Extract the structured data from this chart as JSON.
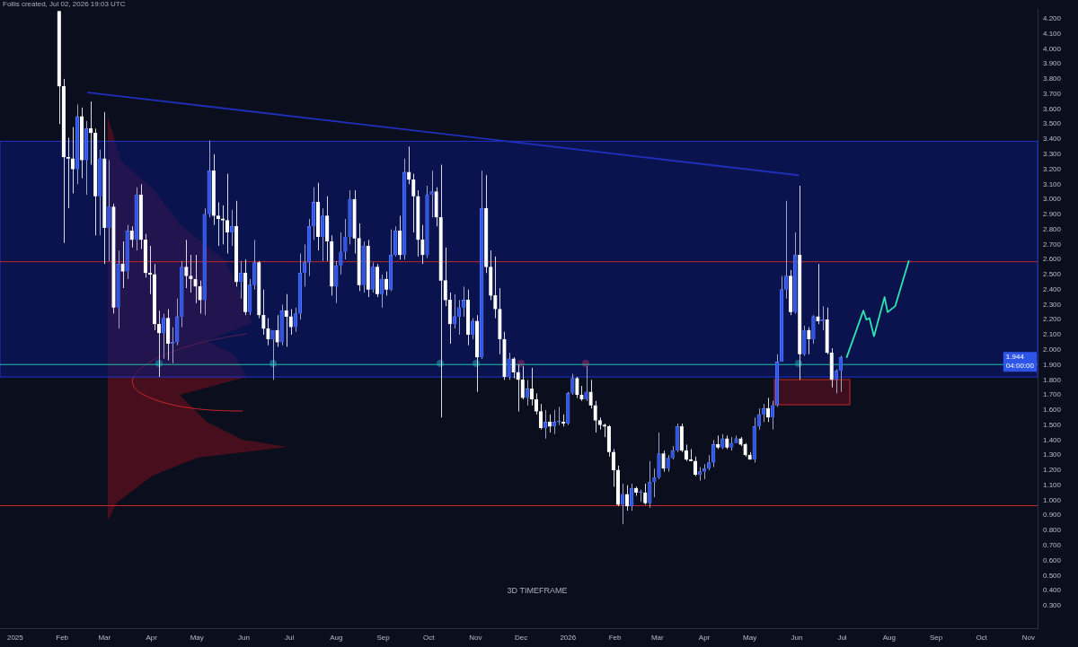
{
  "chart_data": {
    "type": "candlestick",
    "subtitle": "3D TIMEFRAME",
    "annotations": [
      "Follis created, Jul 02, 2026 19:03 UTC",
      "1.944",
      "04:00:00"
    ],
    "x": [
      "2025-01-30",
      "2025-02-02",
      "2025-02-05",
      "2025-02-08",
      "2025-02-11",
      "2025-02-14",
      "2025-02-17",
      "2025-02-20",
      "2025-02-23",
      "2025-02-26",
      "2025-03-01",
      "2025-03-04",
      "2025-03-07",
      "2025-03-10",
      "2025-03-13",
      "2025-03-16",
      "2025-03-19",
      "2025-03-22",
      "2025-03-25",
      "2025-03-28",
      "2025-03-31",
      "2025-04-03",
      "2025-04-06",
      "2025-04-09",
      "2025-04-12",
      "2025-04-15",
      "2025-04-18",
      "2025-04-21",
      "2025-04-24",
      "2025-04-27",
      "2025-04-30",
      "2025-05-03",
      "2025-05-06",
      "2025-05-09",
      "2025-05-12",
      "2025-05-15",
      "2025-05-18",
      "2025-05-21",
      "2025-05-24",
      "2025-05-27",
      "2025-05-30",
      "2025-06-02",
      "2025-06-05",
      "2025-06-08",
      "2025-06-11",
      "2025-06-14",
      "2025-06-17",
      "2025-06-20",
      "2025-06-23",
      "2025-06-26",
      "2025-06-29",
      "2025-07-02",
      "2025-07-05",
      "2025-07-08",
      "2025-07-11",
      "2025-07-14",
      "2025-07-17",
      "2025-07-20",
      "2025-07-23",
      "2025-07-26",
      "2025-07-29",
      "2025-08-01",
      "2025-08-04",
      "2025-08-07",
      "2025-08-10",
      "2025-08-13",
      "2025-08-16",
      "2025-08-19",
      "2025-08-22",
      "2025-08-25",
      "2025-08-28",
      "2025-08-31",
      "2025-09-03",
      "2025-09-06",
      "2025-09-09",
      "2025-09-12",
      "2025-09-15",
      "2025-09-18",
      "2025-09-21",
      "2025-09-24",
      "2025-09-27",
      "2025-09-30",
      "2025-10-03",
      "2025-10-06",
      "2025-10-09",
      "2025-10-12",
      "2025-10-15",
      "2025-10-18",
      "2025-10-21",
      "2025-10-24",
      "2025-10-27",
      "2025-10-30",
      "2025-11-02",
      "2025-11-05",
      "2025-11-08",
      "2025-11-11",
      "2025-11-14",
      "2025-11-17",
      "2025-11-20",
      "2025-11-23",
      "2025-11-26",
      "2025-11-29",
      "2025-12-02",
      "2025-12-05",
      "2025-12-08",
      "2025-12-11",
      "2025-12-14",
      "2025-12-17",
      "2025-12-20",
      "2025-12-23",
      "2025-12-26",
      "2025-12-29",
      "2026-01-01",
      "2026-01-04",
      "2026-01-07",
      "2026-01-10",
      "2026-01-13",
      "2026-01-16",
      "2026-01-19",
      "2026-01-22",
      "2026-01-25",
      "2026-01-28",
      "2026-01-31",
      "2026-02-03",
      "2026-02-06",
      "2026-02-09",
      "2026-02-12",
      "2026-02-15",
      "2026-02-18",
      "2026-02-21",
      "2026-02-24",
      "2026-02-27",
      "2026-03-02",
      "2026-03-05",
      "2026-03-08",
      "2026-03-11",
      "2026-03-14",
      "2026-03-17",
      "2026-03-20",
      "2026-03-23",
      "2026-03-26",
      "2026-03-29",
      "2026-04-01",
      "2026-04-04",
      "2026-04-07",
      "2026-04-10",
      "2026-04-13",
      "2026-04-16",
      "2026-04-19",
      "2026-04-22",
      "2026-04-25",
      "2026-04-28",
      "2026-05-01",
      "2026-05-04",
      "2026-05-07",
      "2026-05-10",
      "2026-05-13",
      "2026-05-16",
      "2026-05-19",
      "2026-05-22",
      "2026-05-25",
      "2026-05-28",
      "2026-05-31",
      "2026-06-03",
      "2026-06-06",
      "2026-06-09",
      "2026-06-12",
      "2026-06-15",
      "2026-06-18",
      "2026-06-21",
      "2026-06-24",
      "2026-06-27",
      "2026-06-30"
    ],
    "ohlc": [
      [
        4.25,
        4.25,
        3.5,
        3.75
      ],
      [
        3.75,
        3.8,
        2.71,
        3.28
      ],
      [
        3.28,
        3.41,
        2.94,
        3.27
      ],
      [
        3.27,
        3.48,
        3.04,
        3.2
      ],
      [
        3.2,
        3.63,
        3.1,
        3.55
      ],
      [
        3.55,
        3.61,
        3.14,
        3.26
      ],
      [
        3.26,
        3.52,
        3.03,
        3.47
      ],
      [
        3.47,
        3.65,
        3.23,
        3.44
      ],
      [
        3.44,
        3.47,
        2.76,
        3.02
      ],
      [
        3.02,
        3.33,
        2.76,
        3.27
      ],
      [
        3.27,
        3.58,
        2.57,
        2.81
      ],
      [
        2.81,
        3.26,
        2.59,
        2.95
      ],
      [
        2.95,
        2.97,
        2.24,
        2.28
      ],
      [
        2.28,
        2.66,
        2.14,
        2.57
      ],
      [
        2.57,
        2.72,
        2.41,
        2.52
      ],
      [
        2.52,
        2.83,
        2.47,
        2.79
      ],
      [
        2.79,
        2.82,
        2.68,
        2.73
      ],
      [
        2.73,
        3.08,
        2.66,
        3.03
      ],
      [
        3.03,
        3.1,
        2.67,
        2.73
      ],
      [
        2.73,
        2.77,
        2.48,
        2.51
      ],
      [
        2.51,
        2.69,
        2.37,
        2.5
      ],
      [
        2.5,
        2.57,
        2.13,
        2.17
      ],
      [
        2.17,
        2.26,
        1.82,
        2.11
      ],
      [
        2.11,
        2.24,
        1.94,
        2.21
      ],
      [
        2.21,
        2.27,
        1.93,
        2.04
      ],
      [
        2.04,
        2.15,
        1.91,
        2.05
      ],
      [
        2.05,
        2.34,
        2.03,
        2.22
      ],
      [
        2.22,
        2.59,
        2.15,
        2.55
      ],
      [
        2.55,
        2.73,
        2.41,
        2.49
      ],
      [
        2.49,
        2.63,
        2.38,
        2.47
      ],
      [
        2.47,
        2.63,
        2.31,
        2.42
      ],
      [
        2.42,
        2.46,
        2.24,
        2.33
      ],
      [
        2.33,
        2.94,
        2.23,
        2.9
      ],
      [
        2.9,
        3.39,
        2.88,
        3.19
      ],
      [
        3.19,
        3.3,
        2.83,
        2.89
      ],
      [
        2.89,
        2.98,
        2.69,
        2.87
      ],
      [
        2.87,
        2.96,
        2.7,
        2.86
      ],
      [
        2.86,
        3.17,
        2.64,
        2.78
      ],
      [
        2.78,
        2.93,
        2.69,
        2.82
      ],
      [
        2.82,
        2.99,
        2.42,
        2.45
      ],
      [
        2.45,
        2.59,
        2.34,
        2.51
      ],
      [
        2.51,
        2.6,
        2.23,
        2.25
      ],
      [
        2.25,
        2.47,
        2.23,
        2.43
      ],
      [
        2.43,
        2.73,
        2.4,
        2.58
      ],
      [
        2.58,
        2.59,
        2.21,
        2.23
      ],
      [
        2.23,
        2.4,
        2.1,
        2.14
      ],
      [
        2.14,
        2.21,
        2.03,
        2.07
      ],
      [
        2.07,
        2.13,
        1.8,
        2.13
      ],
      [
        2.13,
        2.23,
        2.02,
        2.05
      ],
      [
        2.05,
        2.3,
        2.03,
        2.26
      ],
      [
        2.26,
        2.37,
        2.02,
        2.22
      ],
      [
        2.22,
        2.27,
        2.1,
        2.15
      ],
      [
        2.15,
        2.28,
        2.12,
        2.24
      ],
      [
        2.24,
        2.64,
        2.2,
        2.51
      ],
      [
        2.51,
        2.7,
        2.42,
        2.58
      ],
      [
        2.58,
        2.87,
        2.49,
        2.82
      ],
      [
        2.82,
        3.08,
        2.73,
        2.98
      ],
      [
        2.98,
        3.11,
        2.66,
        2.75
      ],
      [
        2.75,
        2.94,
        2.59,
        2.89
      ],
      [
        2.89,
        3.02,
        2.59,
        2.72
      ],
      [
        2.72,
        2.76,
        2.36,
        2.42
      ],
      [
        2.42,
        2.59,
        2.31,
        2.56
      ],
      [
        2.56,
        2.78,
        2.5,
        2.65
      ],
      [
        2.65,
        2.87,
        2.6,
        2.75
      ],
      [
        2.75,
        3.06,
        2.7,
        3.0
      ],
      [
        3.0,
        3.06,
        2.64,
        2.74
      ],
      [
        2.74,
        2.84,
        2.39,
        2.43
      ],
      [
        2.43,
        2.72,
        2.38,
        2.69
      ],
      [
        2.69,
        2.73,
        2.35,
        2.4
      ],
      [
        2.4,
        2.58,
        2.38,
        2.55
      ],
      [
        2.55,
        2.57,
        2.35,
        2.37
      ],
      [
        2.37,
        2.5,
        2.28,
        2.47
      ],
      [
        2.47,
        2.52,
        2.36,
        2.4
      ],
      [
        2.4,
        2.8,
        2.39,
        2.63
      ],
      [
        2.63,
        2.82,
        2.62,
        2.79
      ],
      [
        2.79,
        2.89,
        2.6,
        2.63
      ],
      [
        2.63,
        3.27,
        2.6,
        3.18
      ],
      [
        3.18,
        3.35,
        3.1,
        3.13
      ],
      [
        3.13,
        3.17,
        2.78,
        3.02
      ],
      [
        3.02,
        3.06,
        2.62,
        2.73
      ],
      [
        2.73,
        2.83,
        2.57,
        2.63
      ],
      [
        2.63,
        3.09,
        2.61,
        3.03
      ],
      [
        3.03,
        3.19,
        2.88,
        3.05
      ],
      [
        3.05,
        3.08,
        2.82,
        2.88
      ],
      [
        2.88,
        3.23,
        1.55,
        2.46
      ],
      [
        2.46,
        2.68,
        2.29,
        2.33
      ],
      [
        2.33,
        2.38,
        2.04,
        2.17
      ],
      [
        2.17,
        2.37,
        2.14,
        2.22
      ],
      [
        2.22,
        2.33,
        2.1,
        2.28
      ],
      [
        2.28,
        2.42,
        2.22,
        2.33
      ],
      [
        2.33,
        2.4,
        2.03,
        2.1
      ],
      [
        2.1,
        2.21,
        2.07,
        2.19
      ],
      [
        2.19,
        2.23,
        1.72,
        1.95
      ],
      [
        1.95,
        3.19,
        1.94,
        2.94
      ],
      [
        2.94,
        3.16,
        2.51,
        2.55
      ],
      [
        2.55,
        2.66,
        2.33,
        2.36
      ],
      [
        2.36,
        2.62,
        2.21,
        2.27
      ],
      [
        2.27,
        2.41,
        1.97,
        2.07
      ],
      [
        2.07,
        2.12,
        1.8,
        1.82
      ],
      [
        1.82,
        1.98,
        1.8,
        1.94
      ],
      [
        1.94,
        1.95,
        1.81,
        1.85
      ],
      [
        1.85,
        1.9,
        1.59,
        1.8
      ],
      [
        1.8,
        1.89,
        1.67,
        1.68
      ],
      [
        1.68,
        1.8,
        1.63,
        1.74
      ],
      [
        1.74,
        1.88,
        1.63,
        1.67
      ],
      [
        1.67,
        1.71,
        1.57,
        1.59
      ],
      [
        1.59,
        1.64,
        1.47,
        1.48
      ],
      [
        1.48,
        1.6,
        1.41,
        1.52
      ],
      [
        1.52,
        1.57,
        1.45,
        1.49
      ],
      [
        1.49,
        1.6,
        1.44,
        1.52
      ],
      [
        1.52,
        1.62,
        1.5,
        1.52
      ],
      [
        1.52,
        1.57,
        1.49,
        1.51
      ],
      [
        1.51,
        1.72,
        1.5,
        1.71
      ],
      [
        1.71,
        1.84,
        1.7,
        1.81
      ],
      [
        1.81,
        1.82,
        1.68,
        1.7
      ],
      [
        1.7,
        1.76,
        1.66,
        1.67
      ],
      [
        1.67,
        1.89,
        1.66,
        1.72
      ],
      [
        1.72,
        1.8,
        1.61,
        1.63
      ],
      [
        1.63,
        1.66,
        1.45,
        1.53
      ],
      [
        1.53,
        1.55,
        1.47,
        1.5
      ],
      [
        1.5,
        1.51,
        1.42,
        1.49
      ],
      [
        1.49,
        1.5,
        1.29,
        1.32
      ],
      [
        1.32,
        1.34,
        1.09,
        1.2
      ],
      [
        1.2,
        1.23,
        0.96,
        0.97
      ],
      [
        0.97,
        1.11,
        0.84,
        1.04
      ],
      [
        1.04,
        1.1,
        0.93,
        0.96
      ],
      [
        0.96,
        1.11,
        0.93,
        1.08
      ],
      [
        1.08,
        1.09,
        1.03,
        1.05
      ],
      [
        1.05,
        1.07,
        0.99,
        1.05
      ],
      [
        1.05,
        1.11,
        0.97,
        0.98
      ],
      [
        0.98,
        1.26,
        0.95,
        1.12
      ],
      [
        1.12,
        1.21,
        1.02,
        1.15
      ],
      [
        1.15,
        1.45,
        1.14,
        1.31
      ],
      [
        1.31,
        1.33,
        1.19,
        1.21
      ],
      [
        1.21,
        1.3,
        1.19,
        1.28
      ],
      [
        1.28,
        1.36,
        1.27,
        1.33
      ],
      [
        1.33,
        1.51,
        1.32,
        1.49
      ],
      [
        1.49,
        1.51,
        1.32,
        1.33
      ],
      [
        1.33,
        1.37,
        1.26,
        1.27
      ],
      [
        1.27,
        1.34,
        1.26,
        1.26
      ],
      [
        1.26,
        1.29,
        1.16,
        1.17
      ],
      [
        1.17,
        1.22,
        1.13,
        1.19
      ],
      [
        1.19,
        1.24,
        1.14,
        1.21
      ],
      [
        1.21,
        1.3,
        1.2,
        1.25
      ],
      [
        1.25,
        1.4,
        1.22,
        1.37
      ],
      [
        1.37,
        1.43,
        1.34,
        1.35
      ],
      [
        1.35,
        1.44,
        1.34,
        1.41
      ],
      [
        1.41,
        1.43,
        1.34,
        1.35
      ],
      [
        1.35,
        1.42,
        1.33,
        1.38
      ],
      [
        1.38,
        1.43,
        1.38,
        1.41
      ],
      [
        1.41,
        1.42,
        1.36,
        1.37
      ],
      [
        1.37,
        1.38,
        1.29,
        1.3
      ],
      [
        1.3,
        1.32,
        1.27,
        1.27
      ],
      [
        1.27,
        1.55,
        1.25,
        1.49
      ],
      [
        1.49,
        1.61,
        1.47,
        1.57
      ],
      [
        1.57,
        1.64,
        1.52,
        1.61
      ],
      [
        1.61,
        1.68,
        1.52,
        1.55
      ],
      [
        1.55,
        1.66,
        1.47,
        1.63
      ],
      [
        1.63,
        1.97,
        1.62,
        1.92
      ],
      [
        1.92,
        2.49,
        1.92,
        2.4
      ],
      [
        2.4,
        2.99,
        2.34,
        2.49
      ],
      [
        2.49,
        2.53,
        2.23,
        2.25
      ],
      [
        2.25,
        2.78,
        2.24,
        2.63
      ],
      [
        2.63,
        3.09,
        1.8,
        1.97
      ],
      [
        1.97,
        2.16,
        1.96,
        2.13
      ],
      [
        2.13,
        2.15,
        1.97,
        2.07
      ],
      [
        2.07,
        2.23,
        2.04,
        2.22
      ],
      [
        2.22,
        2.57,
        2.17,
        2.19
      ],
      [
        2.19,
        2.29,
        2.13,
        2.2
      ],
      [
        2.2,
        2.28,
        1.97,
        1.98
      ],
      [
        1.98,
        2.01,
        1.75,
        1.8
      ],
      [
        1.8,
        1.87,
        1.71,
        1.86
      ],
      [
        1.86,
        1.96,
        1.72,
        1.95
      ]
    ],
    "series": [
      {
        "type": "line",
        "color": "#1f2fb8",
        "x": [
          "2025-02-18",
          "2026-06-02"
        ],
        "values": [
          3.71,
          3.16
        ]
      },
      {
        "type": "line",
        "color": "#2ee6b0",
        "x": [
          "2026-07-04",
          "2026-07-15",
          "2026-07-17",
          "2026-07-19",
          "2026-07-22",
          "2026-07-29",
          "2026-07-31",
          "2026-08-05",
          "2026-08-14"
        ],
        "values": [
          1.95,
          2.26,
          2.2,
          2.21,
          2.09,
          2.35,
          2.25,
          2.29,
          2.59
        ]
      }
    ],
    "marker": "none",
    "ref_lines": [
      {
        "axis": "y",
        "value": 2.585,
        "color": "#c62828"
      },
      {
        "axis": "y",
        "value": 1.902,
        "color": "#26c6a6"
      },
      {
        "axis": "y",
        "value": 0.964,
        "color": "#c62828"
      }
    ],
    "bands": [
      {
        "axis": "y",
        "from": 1.819,
        "to": 3.386,
        "color": "#0a1770"
      }
    ],
    "xlim": [
      "2024-12-22",
      "2026-11-07"
    ],
    "xticks": [
      {
        "value": "2025-01-01",
        "label": "2025"
      },
      {
        "value": "2025-02-01",
        "label": "Feb"
      },
      {
        "value": "2025-03-01",
        "label": "Mar"
      },
      {
        "value": "2025-04-01",
        "label": "Apr"
      },
      {
        "value": "2025-05-01",
        "label": "May"
      },
      {
        "value": "2025-06-01",
        "label": "Jun"
      },
      {
        "value": "2025-07-01",
        "label": "Jul"
      },
      {
        "value": "2025-08-01",
        "label": "Aug"
      },
      {
        "value": "2025-09-01",
        "label": "Sep"
      },
      {
        "value": "2025-10-01",
        "label": "Oct"
      },
      {
        "value": "2025-11-01",
        "label": "Nov"
      },
      {
        "value": "2025-12-01",
        "label": "Dec"
      },
      {
        "value": "2026-01-01",
        "label": "2026"
      },
      {
        "value": "2026-02-01",
        "label": "Feb"
      },
      {
        "value": "2026-03-01",
        "label": "Mar"
      },
      {
        "value": "2026-04-01",
        "label": "Apr"
      },
      {
        "value": "2026-05-01",
        "label": "May"
      },
      {
        "value": "2026-06-01",
        "label": "Jun"
      },
      {
        "value": "2026-07-01",
        "label": "Jul"
      },
      {
        "value": "2026-08-01",
        "label": "Aug"
      },
      {
        "value": "2026-09-01",
        "label": "Sep"
      },
      {
        "value": "2026-10-01",
        "label": "Oct"
      },
      {
        "value": "2026-11-01",
        "label": "Nov"
      }
    ],
    "ylim": [
      0.15,
      4.26
    ],
    "yticks": [
      {
        "value": 0.3,
        "label": "0.300"
      },
      {
        "value": 0.4,
        "label": "0.400"
      },
      {
        "value": 0.5,
        "label": "0.500"
      },
      {
        "value": 0.6,
        "label": "0.600"
      },
      {
        "value": 0.7,
        "label": "0.700"
      },
      {
        "value": 0.8,
        "label": "0.800"
      },
      {
        "value": 0.9,
        "label": "0.900"
      },
      {
        "value": 1.0,
        "label": "1.000"
      },
      {
        "value": 1.1,
        "label": "1.100"
      },
      {
        "value": 1.2,
        "label": "1.200"
      },
      {
        "value": 1.3,
        "label": "1.300"
      },
      {
        "value": 1.4,
        "label": "1.400"
      },
      {
        "value": 1.5,
        "label": "1.500"
      },
      {
        "value": 1.6,
        "label": "1.600"
      },
      {
        "value": 1.7,
        "label": "1.700"
      },
      {
        "value": 1.8,
        "label": "1.800"
      },
      {
        "value": 1.9,
        "label": "1.900"
      },
      {
        "value": 2.0,
        "label": "2.000"
      },
      {
        "value": 2.1,
        "label": "2.100"
      },
      {
        "value": 2.2,
        "label": "2.200"
      },
      {
        "value": 2.3,
        "label": "2.300"
      },
      {
        "value": 2.4,
        "label": "2.400"
      },
      {
        "value": 2.5,
        "label": "2.500"
      },
      {
        "value": 2.6,
        "label": "2.600"
      },
      {
        "value": 2.7,
        "label": "2.700"
      },
      {
        "value": 2.8,
        "label": "2.800"
      },
      {
        "value": 2.9,
        "label": "2.900"
      },
      {
        "value": 3.0,
        "label": "3.000"
      },
      {
        "value": 3.1,
        "label": "3.100"
      },
      {
        "value": 3.2,
        "label": "3.200"
      },
      {
        "value": 3.3,
        "label": "3.300"
      },
      {
        "value": 3.4,
        "label": "3.400"
      },
      {
        "value": 3.5,
        "label": "3.500"
      },
      {
        "value": 3.6,
        "label": "3.600"
      },
      {
        "value": 3.7,
        "label": "3.700"
      },
      {
        "value": 3.8,
        "label": "3.800"
      },
      {
        "value": 3.9,
        "label": "3.900"
      },
      {
        "value": 4.0,
        "label": "4.000"
      },
      {
        "value": 4.1,
        "label": "4.100"
      },
      {
        "value": 4.2,
        "label": "4.200"
      }
    ]
  }
}
